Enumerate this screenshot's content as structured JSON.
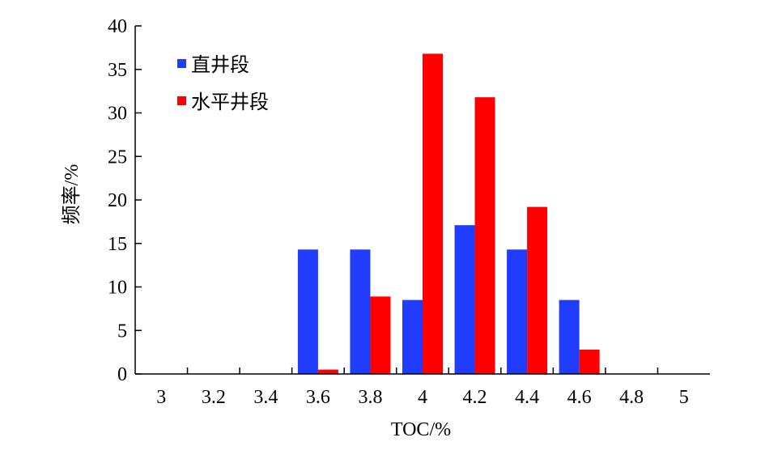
{
  "chart_data": {
    "type": "bar",
    "categories": [
      "3",
      "3.2",
      "3.4",
      "3.6",
      "3.8",
      "4",
      "4.2",
      "4.4",
      "4.6",
      "4.8",
      "5"
    ],
    "series": [
      {
        "name": "直井段",
        "color": "#1f3cff",
        "values": [
          0,
          0,
          0,
          14.3,
          14.3,
          8.5,
          17.1,
          14.3,
          8.5,
          0,
          0
        ]
      },
      {
        "name": "水平井段",
        "color": "#ff0000",
        "values": [
          0,
          0,
          0,
          0.5,
          8.9,
          36.8,
          31.8,
          19.2,
          2.8,
          0,
          0
        ]
      }
    ],
    "xlabel": "TOC/%",
    "ylabel": "频率/%",
    "ylim": [
      0,
      40
    ],
    "yticks": [
      "0",
      "5",
      "10",
      "15",
      "20",
      "25",
      "30",
      "35",
      "40"
    ],
    "grid": false,
    "legend_position": "top-left"
  }
}
